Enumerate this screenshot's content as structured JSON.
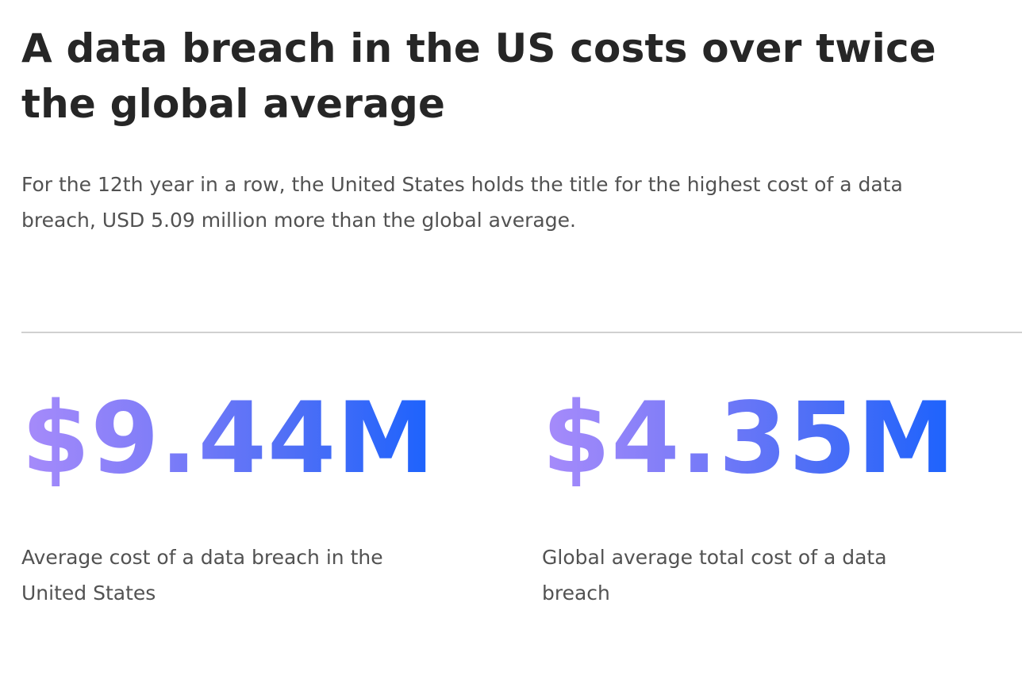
{
  "header": {
    "title": "A data breach in the US costs over twice the global average",
    "subtitle": "For the 12th year in a row, the United States holds the title for the highest cost of a data breach, USD 5.09 million more than the global average."
  },
  "stats": [
    {
      "value": "$9.44M",
      "label": "Average cost of a data breach in the United States"
    },
    {
      "value": "$4.35M",
      "label": "Global average total cost of a data breach"
    }
  ]
}
